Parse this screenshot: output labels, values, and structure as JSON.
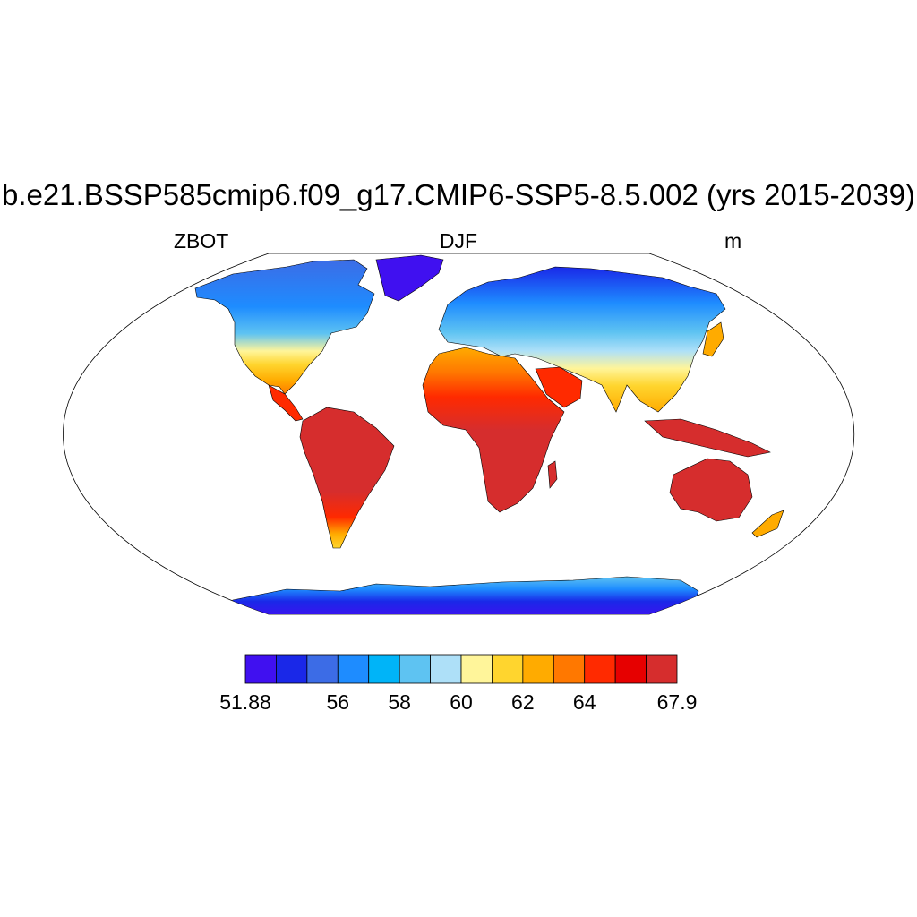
{
  "title": "b.e21.BSSP585cmip6.f09_g17.CMIP6-SSP5-8.5.002 (yrs 2015-2039)",
  "left_string": "ZBOT",
  "center_string": "DJF",
  "right_string": "m",
  "map": {
    "projection": "Robinson",
    "field": "ZBOT",
    "season": "DJF",
    "units": "m",
    "land_only": true,
    "coastlines": true,
    "min": 51.88,
    "max": 67.9
  },
  "colorbar": {
    "colors": [
      "#4010f0",
      "#1a28e8",
      "#3c6ce6",
      "#1e8cff",
      "#00b4f8",
      "#5ec3f2",
      "#aee0f8",
      "#fff59a",
      "#ffd52e",
      "#ffab00",
      "#ff7800",
      "#ff2a00",
      "#e60000",
      "#d62d2d"
    ],
    "labels": [
      {
        "text": "51.88",
        "index": 0
      },
      {
        "text": "56",
        "index": 3
      },
      {
        "text": "58",
        "index": 5
      },
      {
        "text": "60",
        "index": 7
      },
      {
        "text": "62",
        "index": 9
      },
      {
        "text": "64",
        "index": 11
      },
      {
        "text": "67.9",
        "index": 14
      }
    ]
  }
}
